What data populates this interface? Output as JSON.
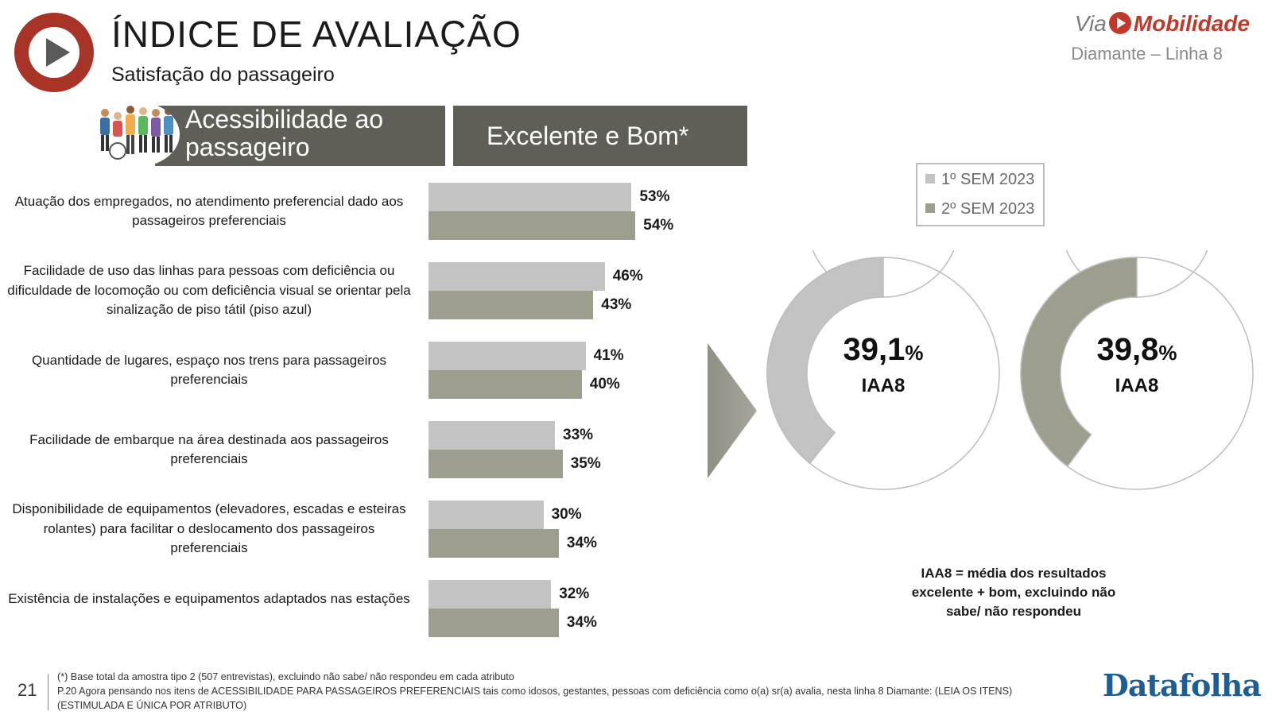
{
  "header": {
    "title": "ÍNDICE DE AVALIAÇÃO",
    "subtitle": "Satisfação do passageiro",
    "brand_via": "Via",
    "brand_mobilidade": "Mobilidade",
    "brand_line": "Diamante – Linha 8"
  },
  "section_header": {
    "topic": "Acessibilidade ao passageiro",
    "metric": "Excelente e Bom*"
  },
  "legend": {
    "series1": "1º SEM 2023",
    "series2": "2º SEM 2023"
  },
  "colors": {
    "series1": "#c3c3c3",
    "series2": "#9e9e8e",
    "header_bg": "#5f5f57",
    "logo": "#a83327"
  },
  "chart_data": [
    {
      "type": "bar",
      "orientation": "horizontal",
      "categories": [
        "Atuação dos empregados, no atendimento preferencial dado aos passageiros preferenciais",
        "Facilidade de uso das linhas para pessoas com deficiência ou dificuldade de locomoção ou com deficiência visual se orientar pela sinalização de piso tátil (piso azul)",
        "Quantidade de lugares, espaço nos trens para passageiros preferenciais",
        "Facilidade de embarque na área destinada aos passageiros preferenciais",
        "Disponibilidade de equipamentos (elevadores, escadas e esteiras rolantes) para facilitar o deslocamento dos passageiros preferenciais",
        "Existência de instalações e equipamentos adaptados nas estações"
      ],
      "series": [
        {
          "name": "1º SEM 2023",
          "values": [
            53,
            46,
            41,
            33,
            30,
            32
          ],
          "labels": [
            "53%",
            "46%",
            "41%",
            "33%",
            "30%",
            "32%"
          ]
        },
        {
          "name": "2º SEM 2023",
          "values": [
            54,
            43,
            40,
            35,
            34,
            34
          ],
          "labels": [
            "54%",
            "43%",
            "40%",
            "35%",
            "34%",
            "34%"
          ]
        }
      ],
      "xlim": [
        0,
        100
      ],
      "grid": false,
      "legend_position": "right"
    },
    {
      "type": "pie",
      "variant": "donut",
      "items": [
        {
          "series": "1º SEM 2023",
          "value": 39.1,
          "value_text": "39,1",
          "unit": "%",
          "label": "IAA8"
        },
        {
          "series": "2º SEM 2023",
          "value": 39.8,
          "value_text": "39,8",
          "unit": "%",
          "label": "IAA8"
        }
      ]
    }
  ],
  "note": "IAA8 = média dos resultados excelente + bom, excluindo não sabe/ não respondeu",
  "footer": {
    "page_number": "21",
    "footnote_lines": [
      "(*) Base total da amostra tipo 2 (507 entrevistas), excluindo não sabe/ não respondeu em cada atributo",
      "P.20 Agora pensando nos itens de ACESSIBILIDADE PARA PASSAGEIROS PREFERENCIAIS tais como idosos, gestantes, pessoas com deficiência como o(a) sr(a) avalia, nesta linha 8 Diamante: (LEIA OS ITENS)",
      "(ESTIMULADA E ÚNICA POR ATRIBUTO)"
    ],
    "datafolha": "Datafolha"
  }
}
